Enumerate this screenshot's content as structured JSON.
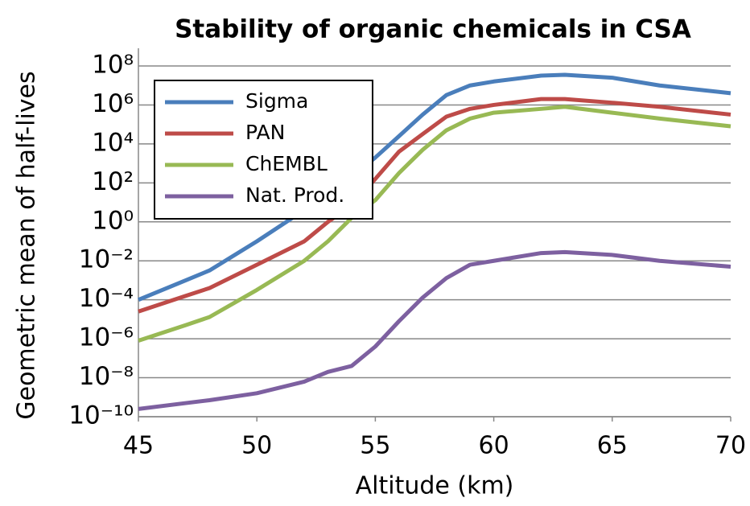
{
  "chart_data": {
    "type": "line",
    "title": "Stability of organic chemicals in CSA",
    "xlabel": "Altitude (km)",
    "ylabel": "Geometric mean of half-lives",
    "x": [
      45,
      47,
      48,
      50,
      52,
      53,
      54,
      55,
      56,
      57,
      58,
      59,
      60,
      62,
      63,
      65,
      67,
      70
    ],
    "series": [
      {
        "name": "Sigma",
        "color": "#4a7ebb",
        "values": [
          0.0001,
          0.001,
          0.0032,
          0.1,
          4,
          25,
          200,
          2000,
          25000,
          320000.0,
          3200000.0,
          10000000.0,
          16000000.0,
          32000000.0,
          35000000.0,
          25000000.0,
          10000000.0,
          4000000.0
        ]
      },
      {
        "name": "PAN",
        "color": "#be4b48",
        "values": [
          2.5e-05,
          0.00016,
          0.0004,
          0.0063,
          0.1,
          1,
          7,
          160,
          4000,
          32000.0,
          250000.0,
          630000.0,
          1000000.0,
          2000000.0,
          2000000.0,
          1300000.0,
          800000.0,
          320000.0
        ]
      },
      {
        "name": "ChEMBL",
        "color": "#98b954",
        "values": [
          8e-07,
          5e-06,
          1.3e-05,
          0.00032,
          0.01,
          0.1,
          1.6,
          13,
          320,
          5000,
          50000.0,
          200000.0,
          400000.0,
          630000.0,
          800000.0,
          400000.0,
          200000.0,
          80000.0
        ]
      },
      {
        "name": "Nat. Prod.",
        "color": "#7d60a0",
        "values": [
          2.5e-10,
          5e-10,
          7e-10,
          1.6e-09,
          6.3e-09,
          2e-08,
          4e-08,
          4e-07,
          8e-06,
          0.00013,
          0.0013,
          0.0063,
          0.01,
          0.025,
          0.028,
          0.02,
          0.01,
          0.005
        ]
      }
    ],
    "xlim": [
      45,
      70
    ],
    "xticks": [
      45,
      50,
      55,
      60,
      65,
      70
    ],
    "ylim": [
      1e-10,
      100000000.0
    ],
    "yscale": "log",
    "yticks": [
      {
        "value": 1e-10,
        "label": "10⁻¹⁰"
      },
      {
        "value": 1e-08,
        "label": "10⁻⁸"
      },
      {
        "value": 1e-06,
        "label": "10⁻⁶"
      },
      {
        "value": 0.0001,
        "label": "10⁻⁴"
      },
      {
        "value": 0.01,
        "label": "10⁻²"
      },
      {
        "value": 1,
        "label": "10⁰"
      },
      {
        "value": 100,
        "label": "10²"
      },
      {
        "value": 10000,
        "label": "10⁴"
      },
      {
        "value": 1000000,
        "label": "10⁶"
      },
      {
        "value": 100000000,
        "label": "10⁸"
      }
    ],
    "grid": true,
    "legend": "upper left"
  }
}
